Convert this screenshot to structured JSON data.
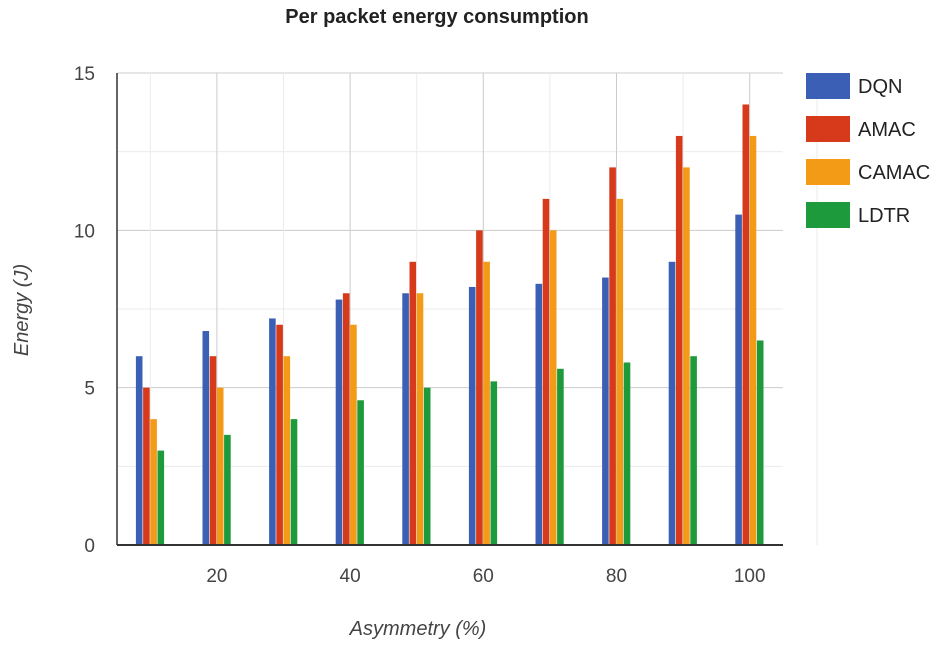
{
  "chart_data": {
    "type": "bar",
    "title": "Per packet energy consumption",
    "xlabel": "Asymmetry (%)",
    "ylabel": "Energy (J)",
    "ylim": [
      0,
      15
    ],
    "xlim": [
      5,
      105
    ],
    "yticks": [
      0,
      5,
      10,
      15
    ],
    "xticks": [
      20,
      40,
      60,
      80,
      100
    ],
    "x": [
      10,
      20,
      30,
      40,
      50,
      60,
      70,
      80,
      90,
      100
    ],
    "legend_position": "right",
    "grid": true,
    "series": [
      {
        "name": "DQN",
        "color": "#3b5fb5",
        "values": [
          6.0,
          6.8,
          7.2,
          7.8,
          8.0,
          8.2,
          8.3,
          8.5,
          9.0,
          10.5
        ]
      },
      {
        "name": "AMAC",
        "color": "#d63a1a",
        "values": [
          5.0,
          6.0,
          7.0,
          8.0,
          9.0,
          10.0,
          11.0,
          12.0,
          13.0,
          14.0
        ]
      },
      {
        "name": "CAMAC",
        "color": "#f39a17",
        "values": [
          4.0,
          5.0,
          6.0,
          7.0,
          8.0,
          9.0,
          10.0,
          11.0,
          12.0,
          13.0
        ]
      },
      {
        "name": "LDTR",
        "color": "#1d9a3b",
        "values": [
          3.0,
          3.5,
          4.0,
          4.6,
          5.0,
          5.2,
          5.6,
          5.8,
          6.0,
          6.5
        ]
      }
    ]
  }
}
